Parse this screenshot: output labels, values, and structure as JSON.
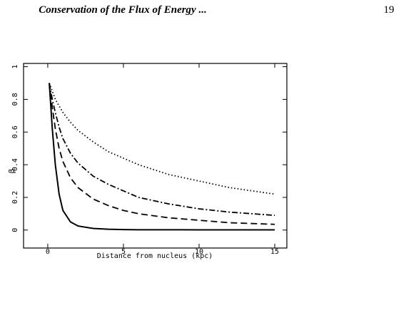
{
  "header": {
    "title": "Conservation of the Flux of Energy ...",
    "page_number": "19"
  },
  "chart_data": {
    "type": "line",
    "x_label": "Distance from nucleus (kpc)",
    "y_label": "β",
    "x": [
      0.1,
      0.3,
      0.5,
      0.75,
      1,
      1.5,
      2,
      3,
      4,
      5,
      6,
      8,
      10,
      12,
      15
    ],
    "series": [
      {
        "color": "#000000",
        "dash": "solid",
        "values": [
          0.9,
          0.62,
          0.4,
          0.22,
          0.12,
          0.05,
          0.025,
          0.01,
          0.005,
          0.003,
          0.002,
          0.002,
          0.001,
          0.001,
          0.001
        ]
      },
      {
        "color": "#000000",
        "dash": "dashed",
        "values": [
          0.9,
          0.75,
          0.62,
          0.5,
          0.42,
          0.32,
          0.26,
          0.19,
          0.15,
          0.12,
          0.1,
          0.075,
          0.06,
          0.045,
          0.035
        ]
      },
      {
        "color": "#000000",
        "dash": "dashdot",
        "values": [
          0.9,
          0.8,
          0.72,
          0.63,
          0.56,
          0.47,
          0.41,
          0.33,
          0.28,
          0.24,
          0.2,
          0.16,
          0.13,
          0.11,
          0.09
        ]
      },
      {
        "color": "#000000",
        "dash": "dotted",
        "values": [
          0.9,
          0.85,
          0.8,
          0.76,
          0.72,
          0.66,
          0.61,
          0.54,
          0.48,
          0.44,
          0.4,
          0.34,
          0.3,
          0.26,
          0.22
        ]
      }
    ],
    "xlim": [
      -1.6,
      15.8
    ],
    "ylim": [
      -0.11,
      1.02
    ],
    "xticks": [
      0,
      5,
      10,
      15
    ],
    "yticks": [
      0,
      0.2,
      0.4,
      0.6,
      0.8,
      1
    ]
  }
}
